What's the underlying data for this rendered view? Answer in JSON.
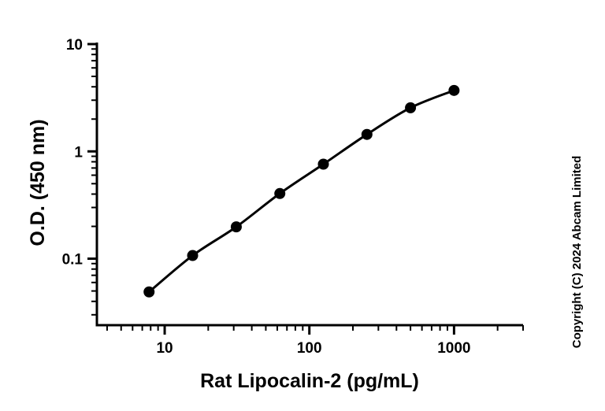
{
  "chart_data": {
    "type": "line",
    "x_scale": "log",
    "y_scale": "log",
    "xlabel": "Rat Lipocalin-2 (pg/mL)",
    "ylabel": "O.D. (450 nm)",
    "xlim": [
      3.4,
      3000
    ],
    "ylim": [
      0.024,
      10
    ],
    "x_ticks": [
      10,
      100,
      1000
    ],
    "x_tick_labels": [
      "10",
      "100",
      "1000"
    ],
    "y_ticks": [
      0.1,
      1,
      10
    ],
    "y_tick_labels": [
      "0.1",
      "1",
      "10"
    ],
    "grid": false,
    "series": [
      {
        "x": [
          7.8,
          15.6,
          31.25,
          62.5,
          125,
          250,
          500,
          1000
        ],
        "y": [
          0.049,
          0.107,
          0.198,
          0.405,
          0.76,
          1.44,
          2.55,
          3.7
        ]
      }
    ],
    "colors": {
      "line": "#000000",
      "marker": "#000000"
    }
  },
  "copyright": "Copyright (C) 2024 Abcam Limited"
}
